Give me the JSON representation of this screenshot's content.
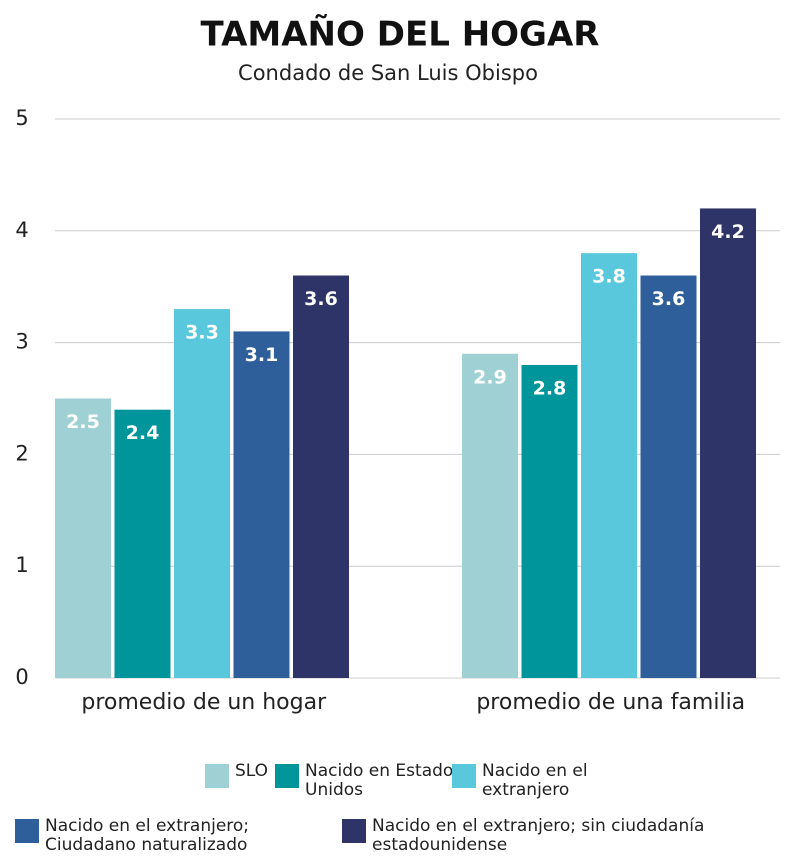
{
  "chart_data": {
    "type": "bar",
    "title": "TAMAÑO DEL HOGAR",
    "subtitle": "Condado de San Luis Obispo",
    "categories": [
      "promedio de un hogar",
      "promedio de una familia"
    ],
    "series": [
      {
        "name": "SLO",
        "color": "#9fd0d3",
        "values": [
          2.5,
          2.9
        ]
      },
      {
        "name": "Nacido en Estados Unidos",
        "color": "#00959a",
        "values": [
          2.4,
          2.8
        ]
      },
      {
        "name": "Nacido en el extranjero",
        "color": "#5ac8dc",
        "values": [
          3.3,
          3.8
        ]
      },
      {
        "name": "Nacido en el extranjero; Ciudadano naturalizado",
        "color": "#2e5f9a",
        "values": [
          3.1,
          3.6
        ]
      },
      {
        "name": "Nacido en el extranjero; sin ciudadanía estadounidense",
        "color": "#2e3368",
        "values": [
          3.6,
          4.2
        ]
      }
    ],
    "ylim": [
      0,
      5
    ],
    "yticks": [
      0,
      1,
      2,
      3,
      4,
      5
    ],
    "grid": true
  }
}
